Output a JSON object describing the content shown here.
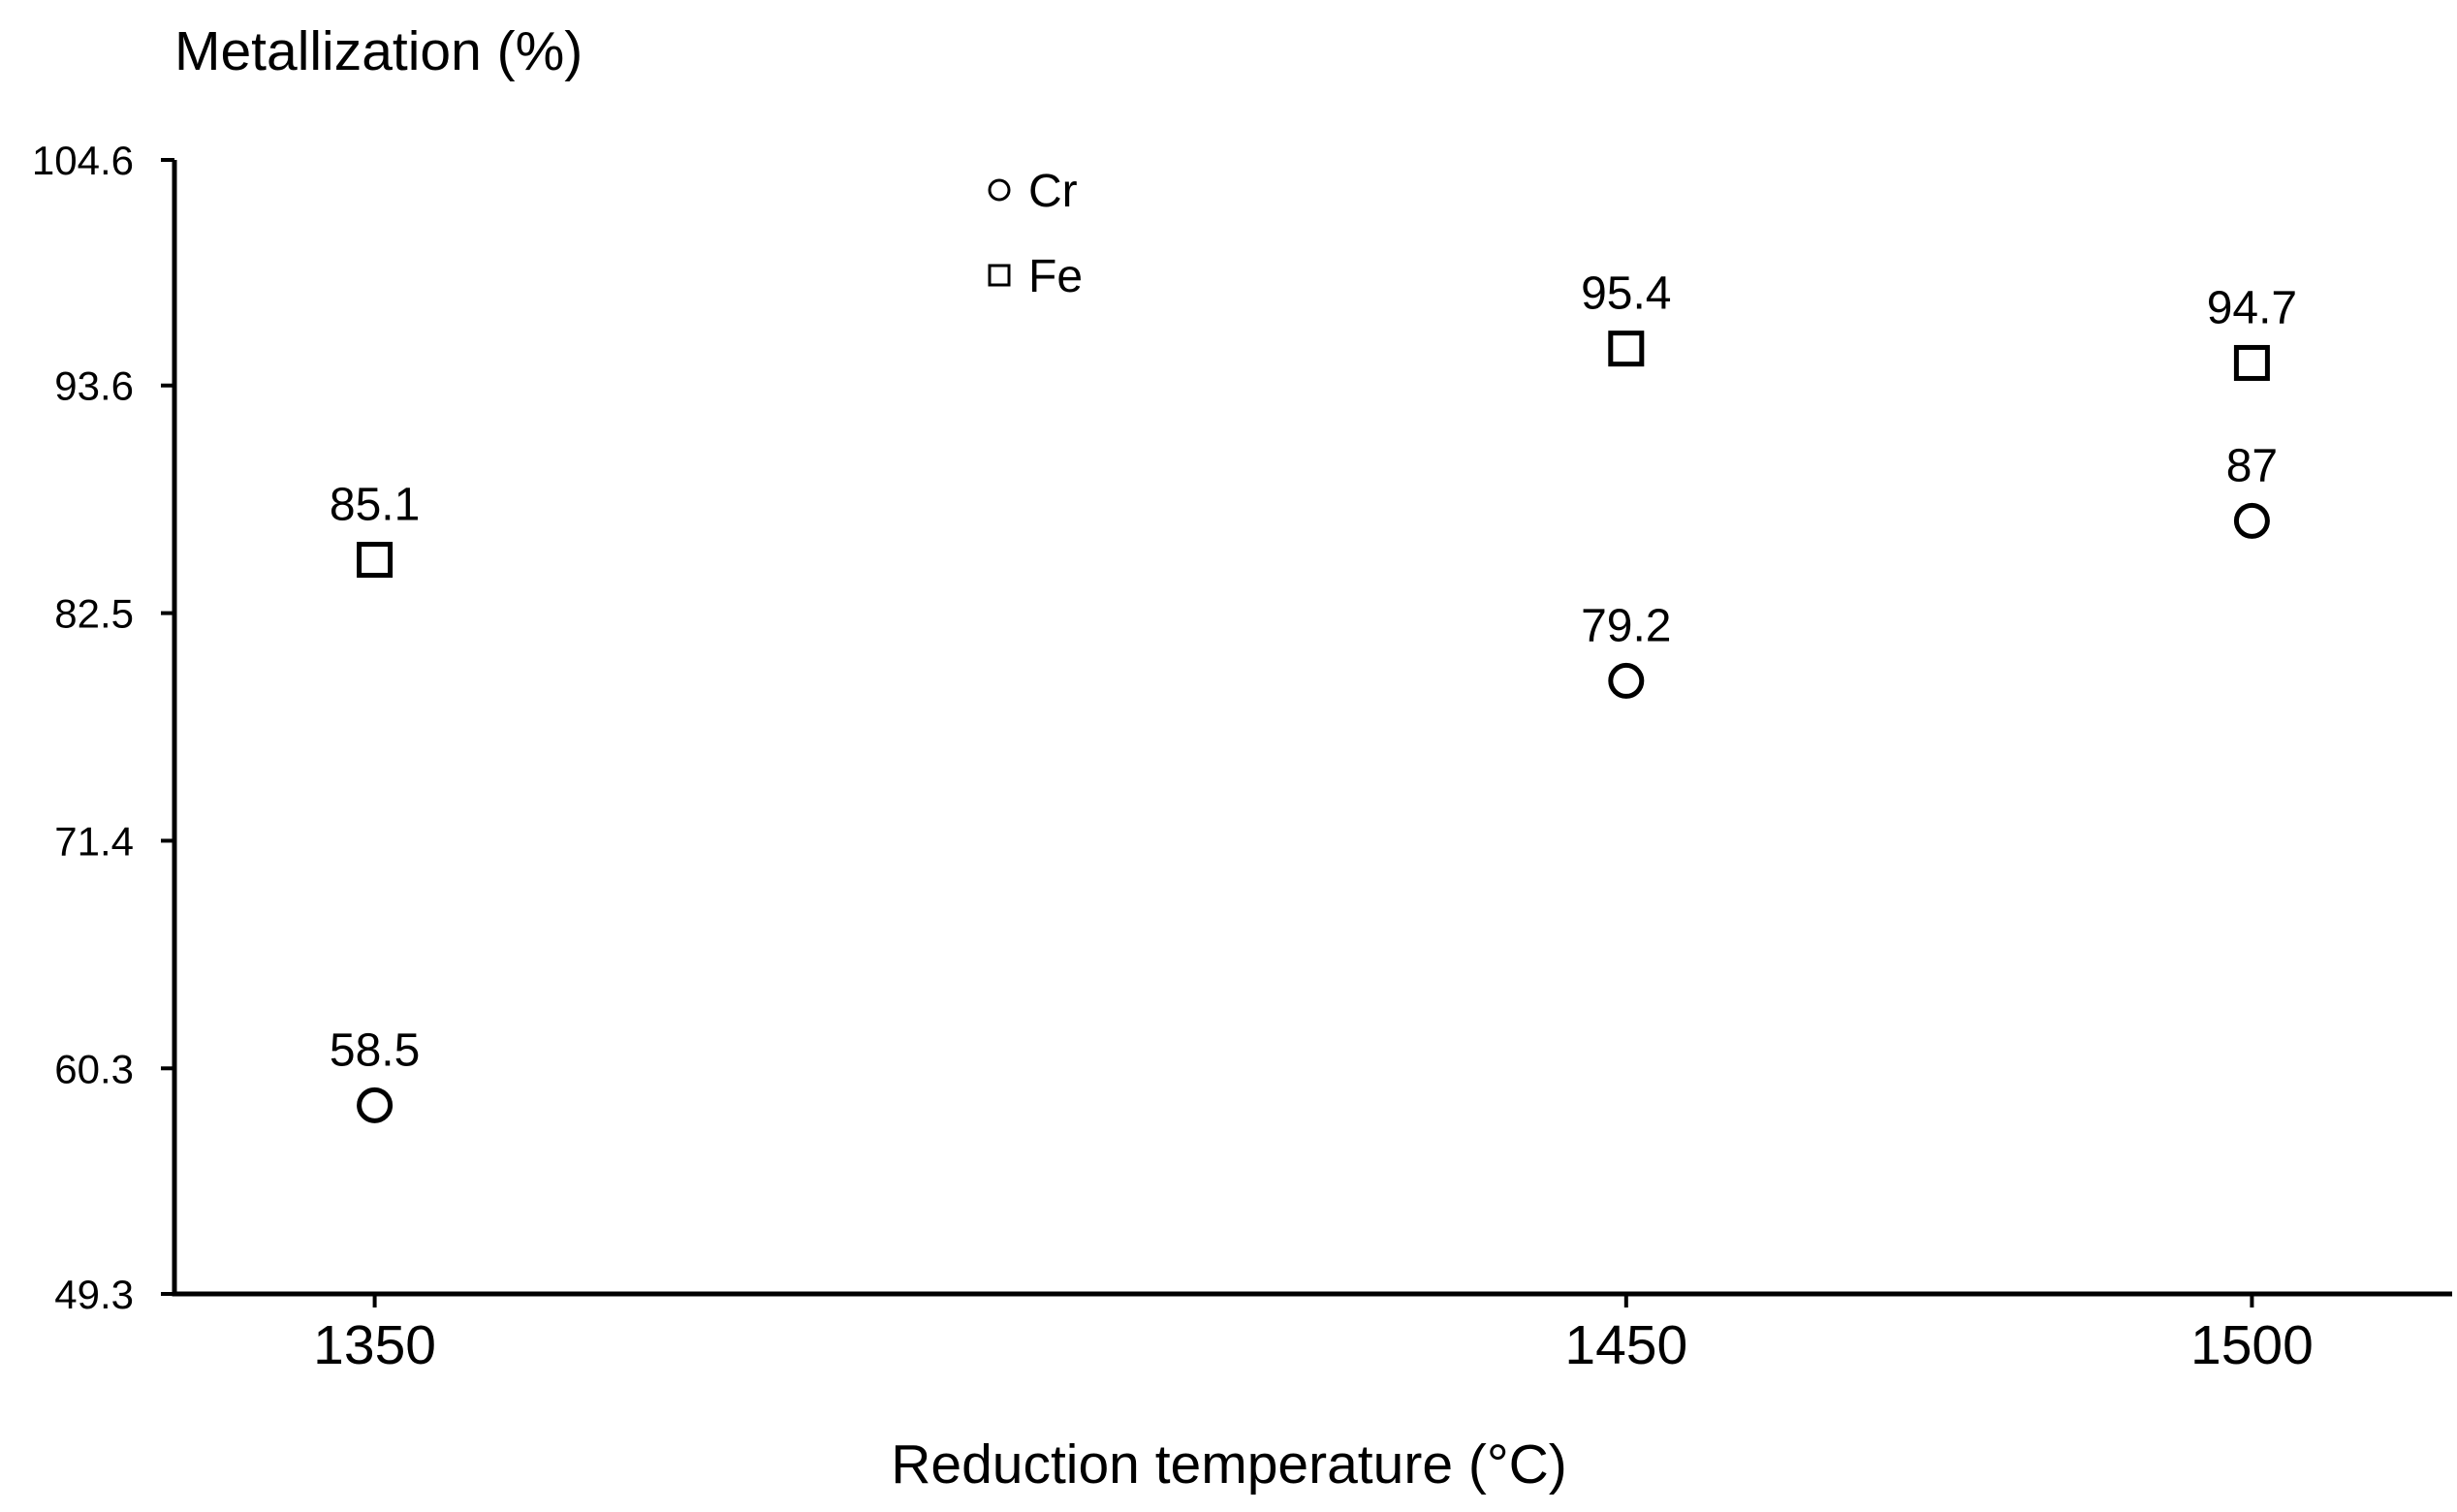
{
  "chart_data": {
    "type": "scatter",
    "title": "",
    "xlabel": "Reduction temperature (°C)",
    "ylabel": "Metallization (%)",
    "x_ticks": [
      "1350",
      "1450",
      "1500"
    ],
    "x_tick_values": [
      1350,
      1450,
      1500
    ],
    "xlim": [
      1334,
      1516
    ],
    "y_ticks": [
      "49.3",
      "60.3",
      "71.4",
      "82.5",
      "93.6",
      "104.6"
    ],
    "y_tick_values": [
      49.3,
      60.3,
      71.4,
      82.5,
      93.6,
      104.6
    ],
    "ylim": [
      49.3,
      104.6
    ],
    "grid": false,
    "legend_position": "top-center",
    "series": [
      {
        "name": "Cr",
        "marker": "circle",
        "x": [
          1350,
          1450,
          1500
        ],
        "y": [
          58.5,
          79.2,
          87
        ],
        "labels": [
          "58.5",
          "79.2",
          "87"
        ]
      },
      {
        "name": "Fe",
        "marker": "square",
        "x": [
          1350,
          1450,
          1500
        ],
        "y": [
          85.1,
          95.4,
          94.7
        ],
        "labels": [
          "85.1",
          "95.4",
          "94.7"
        ]
      }
    ],
    "colors": {
      "marker_stroke": "#000000",
      "marker_fill": "#ffffff",
      "axis": "#000000"
    }
  }
}
